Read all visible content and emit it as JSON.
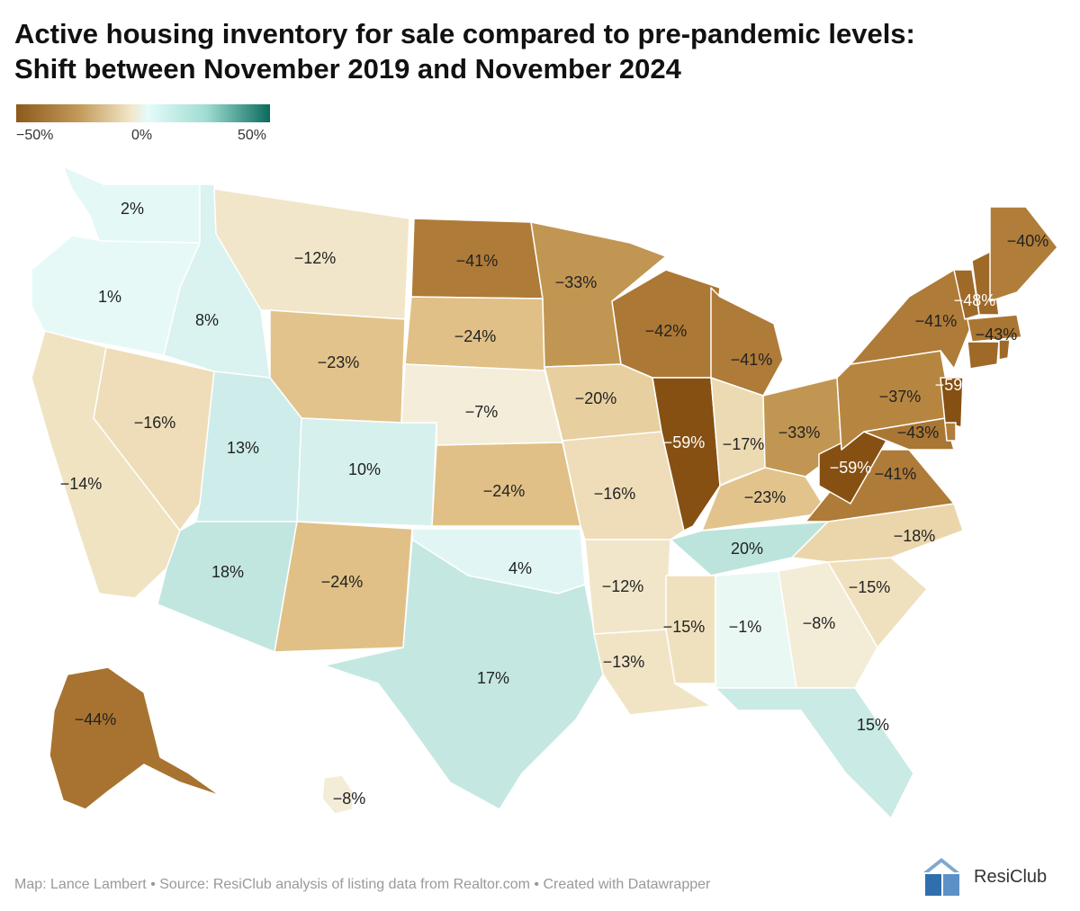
{
  "title": {
    "line1": "Active housing inventory for sale compared to pre-pandemic levels:",
    "line2": "Shift between November 2019 and November 2024"
  },
  "legend": {
    "min_label": "−50%",
    "mid_label": "0%",
    "max_label": "50%"
  },
  "footer": "Map: Lance Lambert • Source: ResiClub analysis of listing data from Realtor.com • Created with Datawrapper",
  "logo": {
    "text": "ResiClub",
    "glyph": "RC"
  },
  "colors": {
    "neg_strong": "#8c5a1b",
    "neg_mid": "#b5843e",
    "neg_light": "#e6c98f",
    "neg_pale": "#f2e6c7",
    "neutral": "#f6f3e8",
    "pos_pale": "#e4fbfb",
    "pos_mid": "#bfe7e0",
    "state_stroke": "#ffffff"
  },
  "chart_data": {
    "type": "choropleth",
    "scale": [
      -50,
      50
    ],
    "unit": "%",
    "states": [
      {
        "id": "WA",
        "value": 2,
        "label": "2%"
      },
      {
        "id": "OR",
        "value": 1,
        "label": "1%"
      },
      {
        "id": "CA",
        "value": -14,
        "label": "−14%"
      },
      {
        "id": "NV",
        "value": -16,
        "label": "−16%"
      },
      {
        "id": "ID",
        "value": 8,
        "label": "8%"
      },
      {
        "id": "MT",
        "value": -12,
        "label": "−12%"
      },
      {
        "id": "WY",
        "value": -23,
        "label": "−23%"
      },
      {
        "id": "UT",
        "value": 13,
        "label": "13%"
      },
      {
        "id": "AZ",
        "value": 18,
        "label": "18%"
      },
      {
        "id": "CO",
        "value": 10,
        "label": "10%"
      },
      {
        "id": "NM",
        "value": -24,
        "label": "−24%"
      },
      {
        "id": "ND",
        "value": -41,
        "label": "−41%"
      },
      {
        "id": "SD",
        "value": -24,
        "label": "−24%"
      },
      {
        "id": "NE",
        "value": -7,
        "label": "−7%"
      },
      {
        "id": "KS",
        "value": -24,
        "label": "−24%"
      },
      {
        "id": "OK",
        "value": 4,
        "label": "4%"
      },
      {
        "id": "TX",
        "value": 17,
        "label": "17%"
      },
      {
        "id": "MN",
        "value": -33,
        "label": "−33%"
      },
      {
        "id": "IA",
        "value": -20,
        "label": "−20%"
      },
      {
        "id": "MO",
        "value": -16,
        "label": "−16%"
      },
      {
        "id": "AR",
        "value": -12,
        "label": "−12%"
      },
      {
        "id": "LA",
        "value": -13,
        "label": "−13%"
      },
      {
        "id": "WI",
        "value": -42,
        "label": "−42%"
      },
      {
        "id": "IL",
        "value": -59,
        "label": "−59%"
      },
      {
        "id": "MI",
        "value": -41,
        "label": "−41%"
      },
      {
        "id": "IN",
        "value": -17,
        "label": "−17%"
      },
      {
        "id": "OH",
        "value": -33,
        "label": "−33%"
      },
      {
        "id": "KY",
        "value": -23,
        "label": "−23%"
      },
      {
        "id": "TN",
        "value": 20,
        "label": "20%"
      },
      {
        "id": "MS",
        "value": -15,
        "label": "−15%"
      },
      {
        "id": "AL",
        "value": -1,
        "label": "−1%"
      },
      {
        "id": "GA",
        "value": -8,
        "label": "−8%"
      },
      {
        "id": "FL",
        "value": 15,
        "label": "15%"
      },
      {
        "id": "SC",
        "value": -15,
        "label": "−15%"
      },
      {
        "id": "NC",
        "value": -18,
        "label": "−18%"
      },
      {
        "id": "VA",
        "value": -41,
        "label": "−41%"
      },
      {
        "id": "WV",
        "value": -59,
        "label": "−59%"
      },
      {
        "id": "MD",
        "value": -43,
        "label": "−43%"
      },
      {
        "id": "PA",
        "value": -37,
        "label": "−37%"
      },
      {
        "id": "NY",
        "value": -41,
        "label": "−41%"
      },
      {
        "id": "NJ",
        "value": -59,
        "label": "−59%"
      },
      {
        "id": "VT",
        "value": -48,
        "label": "−48%"
      },
      {
        "id": "NH",
        "value": -48,
        "label": ""
      },
      {
        "id": "MA",
        "value": -43,
        "label": "−43%"
      },
      {
        "id": "CT",
        "value": -48,
        "label": ""
      },
      {
        "id": "RI",
        "value": -48,
        "label": ""
      },
      {
        "id": "DE",
        "value": -40,
        "label": ""
      },
      {
        "id": "ME",
        "value": -40,
        "label": "−40%"
      },
      {
        "id": "AK",
        "value": -44,
        "label": "−44%"
      },
      {
        "id": "HI",
        "value": -8,
        "label": "−8%"
      }
    ]
  }
}
